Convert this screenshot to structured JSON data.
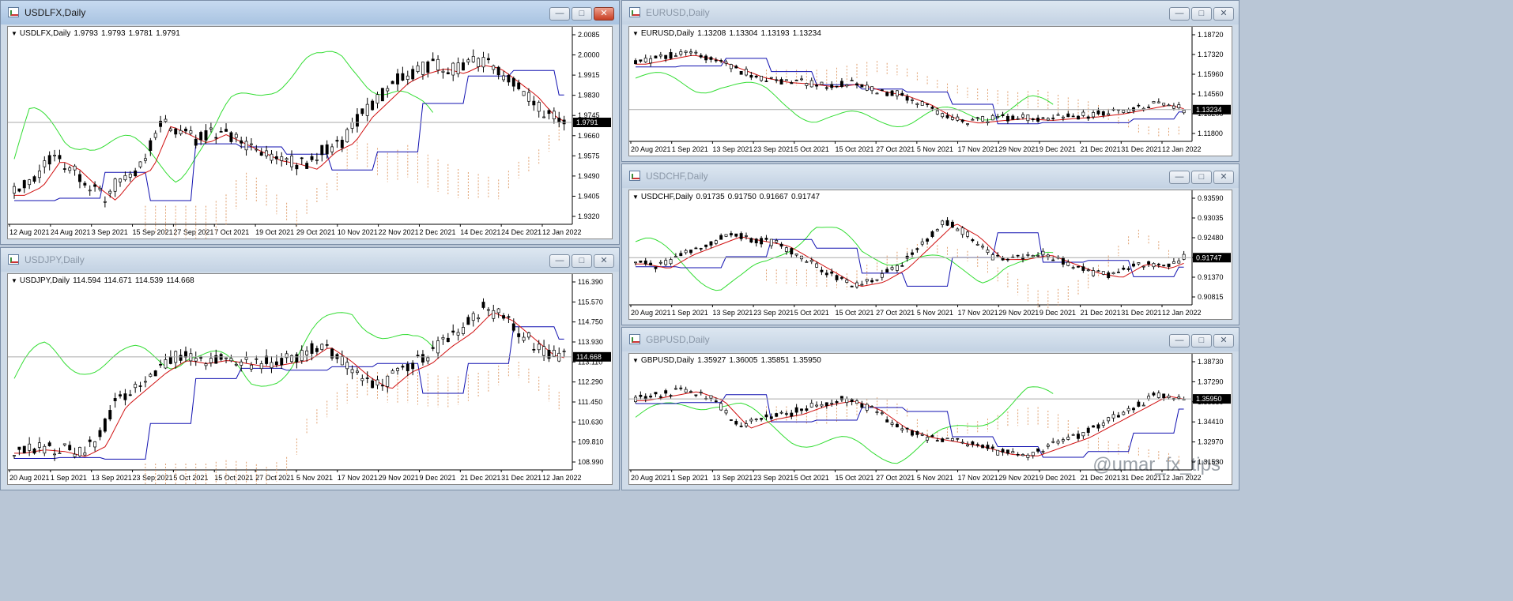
{
  "windows": [
    {
      "key": "usdlfx",
      "title": "USDLFX,Daily",
      "symbol": "USDLFX,Daily",
      "ohlc": [
        "1.9793",
        "1.9793",
        "1.9781",
        "1.9791"
      ],
      "price_label": "1.9791",
      "y_ticks": [
        "2.0085",
        "2.0000",
        "1.9915",
        "1.9830",
        "1.9745",
        "1.9660",
        "1.9575",
        "1.9490",
        "1.9405",
        "1.9320"
      ],
      "x_ticks": [
        "12 Aug 2021",
        "24 Aug 2021",
        "3 Sep 2021",
        "15 Sep 2021",
        "27 Sep 2021",
        "7 Oct 2021",
        "19 Oct 2021",
        "29 Oct 2021",
        "10 Nov 2021",
        "22 Nov 2021",
        "2 Dec 2021",
        "14 Dec 2021",
        "24 Dec 2021",
        "12 Jan 2022"
      ]
    },
    {
      "key": "usdjpy",
      "title": "USDJPY,Daily",
      "symbol": "USDJPY,Daily",
      "ohlc": [
        "114.594",
        "114.671",
        "114.539",
        "114.668"
      ],
      "price_label": "114.668",
      "y_ticks": [
        "116.390",
        "115.570",
        "114.750",
        "113.930",
        "113.110",
        "112.290",
        "111.450",
        "110.630",
        "109.810",
        "108.990"
      ],
      "x_ticks": [
        "20 Aug 2021",
        "1 Sep 2021",
        "13 Sep 2021",
        "23 Sep 2021",
        "5 Oct 2021",
        "15 Oct 2021",
        "27 Oct 2021",
        "5 Nov 2021",
        "17 Nov 2021",
        "29 Nov 2021",
        "9 Dec 2021",
        "21 Dec 2021",
        "31 Dec 2021",
        "12 Jan 2022"
      ]
    },
    {
      "key": "eurusd",
      "title": "EURUSD,Daily",
      "symbol": "EURUSD,Daily",
      "ohlc": [
        "1.13208",
        "1.13304",
        "1.13193",
        "1.13234"
      ],
      "price_label": "1.13234",
      "y_ticks": [
        "1.18720",
        "1.17320",
        "1.15960",
        "1.14560",
        "1.13200",
        "1.11800"
      ],
      "x_ticks": [
        "20 Aug 2021",
        "1 Sep 2021",
        "13 Sep 2021",
        "23 Sep 2021",
        "5 Oct 2021",
        "15 Oct 2021",
        "27 Oct 2021",
        "5 Nov 2021",
        "17 Nov 2021",
        "29 Nov 2021",
        "9 Dec 2021",
        "21 Dec 2021",
        "31 Dec 2021",
        "12 Jan 2022"
      ]
    },
    {
      "key": "usdchf",
      "title": "USDCHF,Daily",
      "symbol": "USDCHF,Daily",
      "ohlc": [
        "0.91735",
        "0.91750",
        "0.91667",
        "0.91747"
      ],
      "price_label": "0.91747",
      "y_ticks": [
        "0.93590",
        "0.93035",
        "0.92480",
        "0.91925",
        "0.91370",
        "0.90815"
      ],
      "x_ticks": [
        "20 Aug 2021",
        "1 Sep 2021",
        "13 Sep 2021",
        "23 Sep 2021",
        "5 Oct 2021",
        "15 Oct 2021",
        "27 Oct 2021",
        "5 Nov 2021",
        "17 Nov 2021",
        "29 Nov 2021",
        "9 Dec 2021",
        "21 Dec 2021",
        "31 Dec 2021",
        "12 Jan 2022"
      ]
    },
    {
      "key": "gbpusd",
      "title": "GBPUSD,Daily",
      "symbol": "GBPUSD,Daily",
      "ohlc": [
        "1.35927",
        "1.36005",
        "1.35851",
        "1.35950"
      ],
      "price_label": "1.35950",
      "y_ticks": [
        "1.38730",
        "1.37290",
        "1.35850",
        "1.34410",
        "1.32970",
        "1.31530"
      ],
      "x_ticks": [
        "20 Aug 2021",
        "1 Sep 2021",
        "13 Sep 2021",
        "23 Sep 2021",
        "5 Oct 2021",
        "15 Oct 2021",
        "27 Oct 2021",
        "5 Nov 2021",
        "17 Nov 2021",
        "29 Nov 2021",
        "9 Dec 2021",
        "21 Dec 2021",
        "31 Dec 2021",
        "12 Jan 2022"
      ]
    }
  ],
  "watermark": "@umar_fx_tips",
  "icons": {
    "minimize": "minimize-icon",
    "maximize": "maximize-icon",
    "close": "close-icon"
  },
  "colors": {
    "bull": "#ffffff",
    "bear": "#000000",
    "tenkan": "#d01010",
    "kijun": "#1010b0",
    "chikou": "#33dd33",
    "cloud": "#e0a070"
  }
}
